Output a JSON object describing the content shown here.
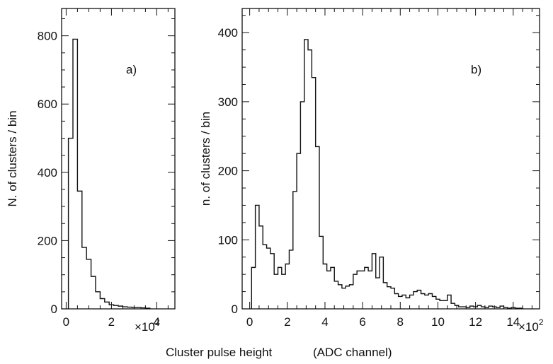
{
  "caption": {
    "left": "Cluster pulse height",
    "right": "(ADC channel)"
  },
  "chart_data": [
    {
      "type": "histogram",
      "panel_label": "a)",
      "xlabel": "Cluster pulse height (ADC channel)",
      "x_multiplier": "×10",
      "x_multiplier_exp": "2",
      "ylabel": "N. of clusters / bin",
      "xlim": [
        -0.2,
        4.8
      ],
      "ylim": [
        0,
        880
      ],
      "xticks": [
        0,
        2,
        4
      ],
      "yticks": [
        0,
        200,
        400,
        600,
        800
      ],
      "bin_width": 0.2,
      "bins": [
        {
          "x": 0.2,
          "y": 500
        },
        {
          "x": 0.4,
          "y": 790
        },
        {
          "x": 0.6,
          "y": 345
        },
        {
          "x": 0.8,
          "y": 180
        },
        {
          "x": 1.0,
          "y": 145
        },
        {
          "x": 1.2,
          "y": 95
        },
        {
          "x": 1.4,
          "y": 50
        },
        {
          "x": 1.6,
          "y": 30
        },
        {
          "x": 1.8,
          "y": 20
        },
        {
          "x": 2.0,
          "y": 12
        },
        {
          "x": 2.2,
          "y": 10
        },
        {
          "x": 2.4,
          "y": 8
        },
        {
          "x": 2.6,
          "y": 6
        },
        {
          "x": 2.8,
          "y": 5
        },
        {
          "x": 3.0,
          "y": 4
        },
        {
          "x": 3.2,
          "y": 4
        },
        {
          "x": 3.4,
          "y": 3
        },
        {
          "x": 3.6,
          "y": 2
        }
      ]
    },
    {
      "type": "histogram",
      "panel_label": "b)",
      "xlabel": "Cluster pulse height (ADC channel)",
      "x_multiplier": "×10",
      "x_multiplier_exp": "2",
      "ylabel": "n. of clusters / bin",
      "xlim": [
        -0.4,
        15.4
      ],
      "ylim": [
        0,
        435
      ],
      "xticks": [
        0,
        2,
        4,
        6,
        8,
        10,
        12,
        14
      ],
      "yticks": [
        0,
        100,
        200,
        300,
        400
      ],
      "bin_width": 0.2,
      "bins": [
        {
          "x": 0.2,
          "y": 60
        },
        {
          "x": 0.4,
          "y": 150
        },
        {
          "x": 0.6,
          "y": 120
        },
        {
          "x": 0.8,
          "y": 93
        },
        {
          "x": 1.0,
          "y": 88
        },
        {
          "x": 1.2,
          "y": 80
        },
        {
          "x": 1.4,
          "y": 50
        },
        {
          "x": 1.6,
          "y": 60
        },
        {
          "x": 1.8,
          "y": 50
        },
        {
          "x": 2.0,
          "y": 65
        },
        {
          "x": 2.2,
          "y": 85
        },
        {
          "x": 2.4,
          "y": 170
        },
        {
          "x": 2.6,
          "y": 225
        },
        {
          "x": 2.8,
          "y": 300
        },
        {
          "x": 3.0,
          "y": 390
        },
        {
          "x": 3.2,
          "y": 375
        },
        {
          "x": 3.4,
          "y": 335
        },
        {
          "x": 3.6,
          "y": 235
        },
        {
          "x": 3.8,
          "y": 105
        },
        {
          "x": 4.0,
          "y": 65
        },
        {
          "x": 4.2,
          "y": 55
        },
        {
          "x": 4.4,
          "y": 60
        },
        {
          "x": 4.6,
          "y": 40
        },
        {
          "x": 4.8,
          "y": 35
        },
        {
          "x": 5.0,
          "y": 30
        },
        {
          "x": 5.2,
          "y": 33
        },
        {
          "x": 5.4,
          "y": 35
        },
        {
          "x": 5.6,
          "y": 50
        },
        {
          "x": 5.8,
          "y": 55
        },
        {
          "x": 6.0,
          "y": 55
        },
        {
          "x": 6.2,
          "y": 60
        },
        {
          "x": 6.4,
          "y": 55
        },
        {
          "x": 6.6,
          "y": 80
        },
        {
          "x": 6.8,
          "y": 45
        },
        {
          "x": 7.0,
          "y": 75
        },
        {
          "x": 7.2,
          "y": 38
        },
        {
          "x": 7.4,
          "y": 32
        },
        {
          "x": 7.6,
          "y": 30
        },
        {
          "x": 7.8,
          "y": 22
        },
        {
          "x": 8.0,
          "y": 18
        },
        {
          "x": 8.2,
          "y": 20
        },
        {
          "x": 8.4,
          "y": 16
        },
        {
          "x": 8.6,
          "y": 20
        },
        {
          "x": 8.8,
          "y": 25
        },
        {
          "x": 9.0,
          "y": 27
        },
        {
          "x": 9.2,
          "y": 22
        },
        {
          "x": 9.4,
          "y": 20
        },
        {
          "x": 9.6,
          "y": 22
        },
        {
          "x": 9.8,
          "y": 18
        },
        {
          "x": 10.0,
          "y": 14
        },
        {
          "x": 10.2,
          "y": 12
        },
        {
          "x": 10.4,
          "y": 12
        },
        {
          "x": 10.6,
          "y": 20
        },
        {
          "x": 10.8,
          "y": 8
        },
        {
          "x": 11.0,
          "y": 5
        },
        {
          "x": 11.2,
          "y": 3
        },
        {
          "x": 11.4,
          "y": 3
        },
        {
          "x": 11.6,
          "y": 2
        },
        {
          "x": 11.8,
          "y": 4
        },
        {
          "x": 12.0,
          "y": 3
        },
        {
          "x": 12.2,
          "y": 5
        },
        {
          "x": 12.4,
          "y": 3
        },
        {
          "x": 12.6,
          "y": 2
        },
        {
          "x": 12.8,
          "y": 4
        },
        {
          "x": 13.0,
          "y": 3
        },
        {
          "x": 13.2,
          "y": 2
        },
        {
          "x": 13.4,
          "y": 4
        },
        {
          "x": 13.6,
          "y": 2
        },
        {
          "x": 13.8,
          "y": 1
        },
        {
          "x": 14.0,
          "y": 2
        },
        {
          "x": 14.2,
          "y": 1
        },
        {
          "x": 14.4,
          "y": 1
        }
      ]
    }
  ]
}
